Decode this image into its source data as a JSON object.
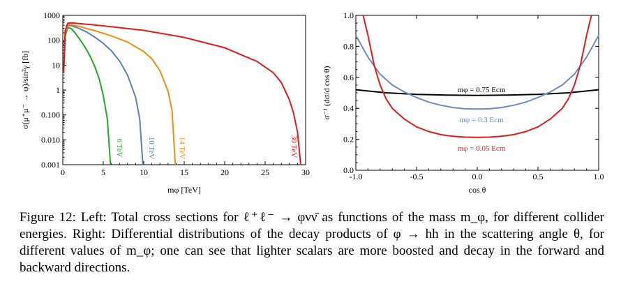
{
  "figure": {
    "caption_label": "Figure 12:",
    "caption_text": "Left: Total cross sections for ℓ⁺ℓ⁻ → φνν̄ as functions of the mass m_φ, for different collider energies. Right: Differential distributions of the decay products of φ → hh in the scattering angle θ, for different values of m_φ; one can see that lighter scalars are more boosted and decay in the forward and backward directions."
  },
  "chart_data": [
    {
      "type": "line",
      "xlabel": "mφ [TeV]",
      "ylabel": "σ(μ⁺μ⁻ → φ)/sin²γ [fb]",
      "xlim": [
        0,
        30
      ],
      "ylim": [
        0.001,
        1000
      ],
      "yscale": "log",
      "xticks": [
        "0",
        "5",
        "10",
        "15",
        "20",
        "25",
        "30"
      ],
      "yticks": [
        "0.001",
        "0.010",
        "0.100",
        "1",
        "10",
        "100",
        "1000"
      ],
      "grid": false,
      "series": [
        {
          "name": "6 TeV",
          "color": "#22a822",
          "x": [
            0.1,
            0.3,
            0.6,
            1.0,
            1.5,
            2.0,
            2.5,
            3.0,
            3.5,
            4.0,
            4.5,
            5.0,
            5.5,
            5.9
          ],
          "y": [
            5,
            150,
            320,
            300,
            200,
            120,
            70,
            38,
            19,
            8,
            2.8,
            0.6,
            0.07,
            0.001
          ]
        },
        {
          "name": "10 TeV",
          "color": "#5b7fb8",
          "x": [
            0.1,
            0.3,
            0.6,
            1.0,
            2.0,
            3.0,
            4.0,
            5.0,
            6.0,
            7.0,
            8.0,
            9.0,
            9.5,
            9.9
          ],
          "y": [
            5,
            180,
            380,
            390,
            300,
            210,
            130,
            75,
            38,
            15,
            4,
            0.5,
            0.07,
            0.001
          ]
        },
        {
          "name": "14 TeV",
          "color": "#f08c10",
          "x": [
            0.1,
            0.3,
            0.6,
            1.0,
            2.0,
            4.0,
            6.0,
            8.0,
            10.0,
            11.0,
            12.0,
            13.0,
            13.5,
            13.9
          ],
          "y": [
            5,
            200,
            420,
            420,
            360,
            240,
            150,
            85,
            35,
            18,
            6,
            0.9,
            0.15,
            0.001
          ]
        },
        {
          "name": "30 TeV",
          "color": "#e31a1a",
          "x": [
            0.1,
            0.3,
            0.6,
            1.0,
            2.0,
            5.0,
            10.0,
            15.0,
            20.0,
            24.0,
            26.0,
            27.0,
            28.0,
            28.5,
            29.0,
            29.4
          ],
          "y": [
            5,
            250,
            480,
            500,
            470,
            380,
            250,
            130,
            50,
            14,
            5,
            2,
            0.4,
            0.12,
            0.02,
            0.001
          ]
        }
      ]
    },
    {
      "type": "line",
      "xlabel": "cos θ",
      "ylabel": "σ⁻¹ (dσ/d cos θ)",
      "xlim": [
        -1.0,
        1.0
      ],
      "ylim": [
        0.0,
        1.0
      ],
      "xticks": [
        "-1.0",
        "-0.5",
        "0.0",
        "0.5",
        "1.0"
      ],
      "yticks": [
        "0.0",
        "0.2",
        "0.4",
        "0.6",
        "0.8",
        "1.0"
      ],
      "grid": false,
      "series": [
        {
          "name": "mφ = 0.75 Ecm",
          "color": "#000000",
          "x": [
            -1.0,
            -0.75,
            -0.5,
            -0.25,
            0.0,
            0.25,
            0.5,
            0.75,
            1.0
          ],
          "y": [
            0.52,
            0.5,
            0.49,
            0.485,
            0.483,
            0.485,
            0.49,
            0.5,
            0.52
          ]
        },
        {
          "name": "mφ = 0.3 Ecm",
          "color": "#6b8cc0",
          "x": [
            -1.0,
            -0.9,
            -0.8,
            -0.7,
            -0.6,
            -0.5,
            -0.4,
            -0.3,
            -0.2,
            -0.1,
            0.0,
            0.1,
            0.2,
            0.3,
            0.4,
            0.5,
            0.6,
            0.7,
            0.8,
            0.9,
            1.0
          ],
          "y": [
            0.87,
            0.73,
            0.62,
            0.55,
            0.505,
            0.47,
            0.44,
            0.42,
            0.405,
            0.397,
            0.395,
            0.397,
            0.405,
            0.42,
            0.44,
            0.47,
            0.505,
            0.55,
            0.62,
            0.73,
            0.87
          ]
        },
        {
          "name": "mφ = 0.05 Ecm",
          "color": "#e31a1a",
          "x": [
            -0.94,
            -0.9,
            -0.85,
            -0.8,
            -0.75,
            -0.7,
            -0.6,
            -0.5,
            -0.4,
            -0.3,
            -0.2,
            -0.1,
            0.0,
            0.1,
            0.2,
            0.3,
            0.4,
            0.5,
            0.6,
            0.7,
            0.75,
            0.8,
            0.85,
            0.9,
            0.94
          ],
          "y": [
            1.0,
            0.87,
            0.68,
            0.55,
            0.46,
            0.4,
            0.33,
            0.28,
            0.25,
            0.23,
            0.22,
            0.214,
            0.212,
            0.214,
            0.22,
            0.23,
            0.25,
            0.28,
            0.33,
            0.4,
            0.46,
            0.55,
            0.68,
            0.87,
            1.0
          ]
        }
      ]
    }
  ]
}
